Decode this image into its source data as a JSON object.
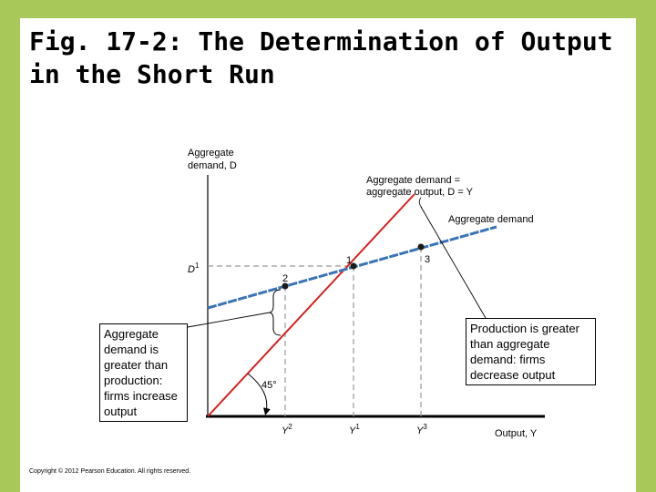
{
  "title": {
    "line1": "Fig. 17-2: The Determination of Output",
    "line2": "in the Short Run"
  },
  "diagram": {
    "y_axis_label_line1": "Aggregate",
    "y_axis_label_line2": "demand, D",
    "x_axis_label": "Output, Y",
    "d1_label": "D",
    "d1_sup": "1",
    "line_45_label_line1": "Aggregate demand =",
    "line_45_label_line2": "aggregate output, D = Y",
    "ad_line_label": "Aggregate demand",
    "angle_label": "45°",
    "point_labels": [
      "1",
      "2",
      "3"
    ],
    "tick_labels": [
      {
        "base": "Y",
        "sup": "2"
      },
      {
        "base": "Y",
        "sup": "1"
      },
      {
        "base": "Y",
        "sup": "3"
      }
    ],
    "colors": {
      "line_45": "#d62020",
      "aggregate_demand": "#3a73b5",
      "accent_green": "#a8c95a"
    }
  },
  "callouts": {
    "left": "Aggregate demand is greater than production: firms increase output",
    "right": "Production is greater than aggregate demand: firms decrease output"
  },
  "copyright": "Copyright © 2012 Pearson Education. All rights reserved."
}
